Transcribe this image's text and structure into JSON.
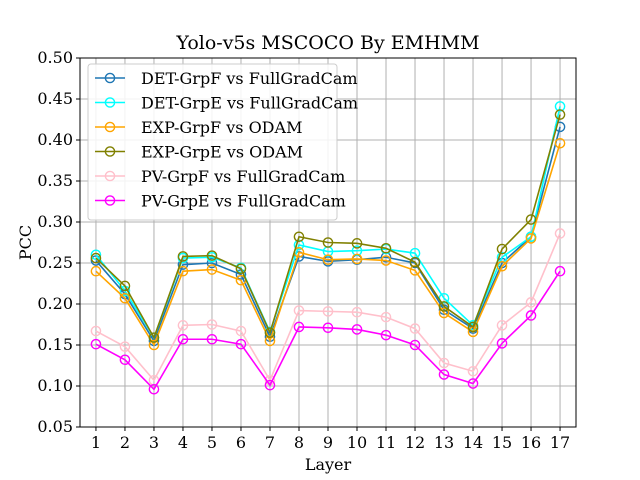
{
  "chart_data": {
    "type": "line",
    "title": "Yolo-v5s MSCOCO By EMHMM",
    "xlabel": "Layer",
    "ylabel": "PCC",
    "x": [
      1,
      2,
      3,
      4,
      5,
      6,
      7,
      8,
      9,
      10,
      11,
      12,
      13,
      14,
      15,
      16,
      17
    ],
    "x_tick_labels": [
      "1",
      "2",
      "3",
      "4",
      "5",
      "6",
      "7",
      "8",
      "9",
      "10",
      "11",
      "12",
      "13",
      "14",
      "15",
      "16",
      "17"
    ],
    "ylim": [
      0.05,
      0.5
    ],
    "y_ticks": [
      0.05,
      0.1,
      0.15,
      0.2,
      0.25,
      0.3,
      0.35,
      0.4,
      0.45,
      0.5
    ],
    "y_tick_labels": [
      "0.05",
      "0.10",
      "0.15",
      "0.20",
      "0.25",
      "0.30",
      "0.35",
      "0.40",
      "0.45",
      "0.50"
    ],
    "grid": true,
    "legend_position": "upper-left",
    "series": [
      {
        "name": "DET-GrpF vs FullGradCam",
        "color": "#1f77b4",
        "values": [
          0.253,
          0.212,
          0.155,
          0.248,
          0.25,
          0.236,
          0.16,
          0.258,
          0.252,
          0.254,
          0.257,
          0.25,
          0.193,
          0.17,
          0.25,
          0.282,
          0.416
        ]
      },
      {
        "name": "DET-GrpE vs FullGradCam",
        "color": "#00ffff",
        "values": [
          0.26,
          0.216,
          0.159,
          0.256,
          0.257,
          0.244,
          0.166,
          0.272,
          0.264,
          0.265,
          0.267,
          0.262,
          0.207,
          0.174,
          0.257,
          0.282,
          0.441
        ]
      },
      {
        "name": "EXP-GrpF vs ODAM",
        "color": "#ffa500",
        "values": [
          0.24,
          0.207,
          0.15,
          0.24,
          0.242,
          0.229,
          0.155,
          0.263,
          0.254,
          0.255,
          0.253,
          0.241,
          0.189,
          0.166,
          0.246,
          0.28,
          0.396
        ]
      },
      {
        "name": "EXP-GrpE vs ODAM",
        "color": "#808000",
        "values": [
          0.256,
          0.222,
          0.159,
          0.258,
          0.259,
          0.243,
          0.165,
          0.282,
          0.275,
          0.274,
          0.268,
          0.251,
          0.197,
          0.172,
          0.267,
          0.303,
          0.431
        ]
      },
      {
        "name": "PV-GrpF vs FullGradCam",
        "color": "#ffc0cb",
        "values": [
          0.167,
          0.148,
          0.107,
          0.174,
          0.175,
          0.167,
          0.107,
          0.192,
          0.191,
          0.19,
          0.184,
          0.17,
          0.128,
          0.118,
          0.174,
          0.202,
          0.286
        ]
      },
      {
        "name": "PV-GrpE vs FullGradCam",
        "color": "#ff00ff",
        "values": [
          0.151,
          0.132,
          0.096,
          0.157,
          0.157,
          0.151,
          0.101,
          0.172,
          0.171,
          0.169,
          0.162,
          0.15,
          0.114,
          0.103,
          0.152,
          0.186,
          0.24
        ]
      }
    ]
  }
}
